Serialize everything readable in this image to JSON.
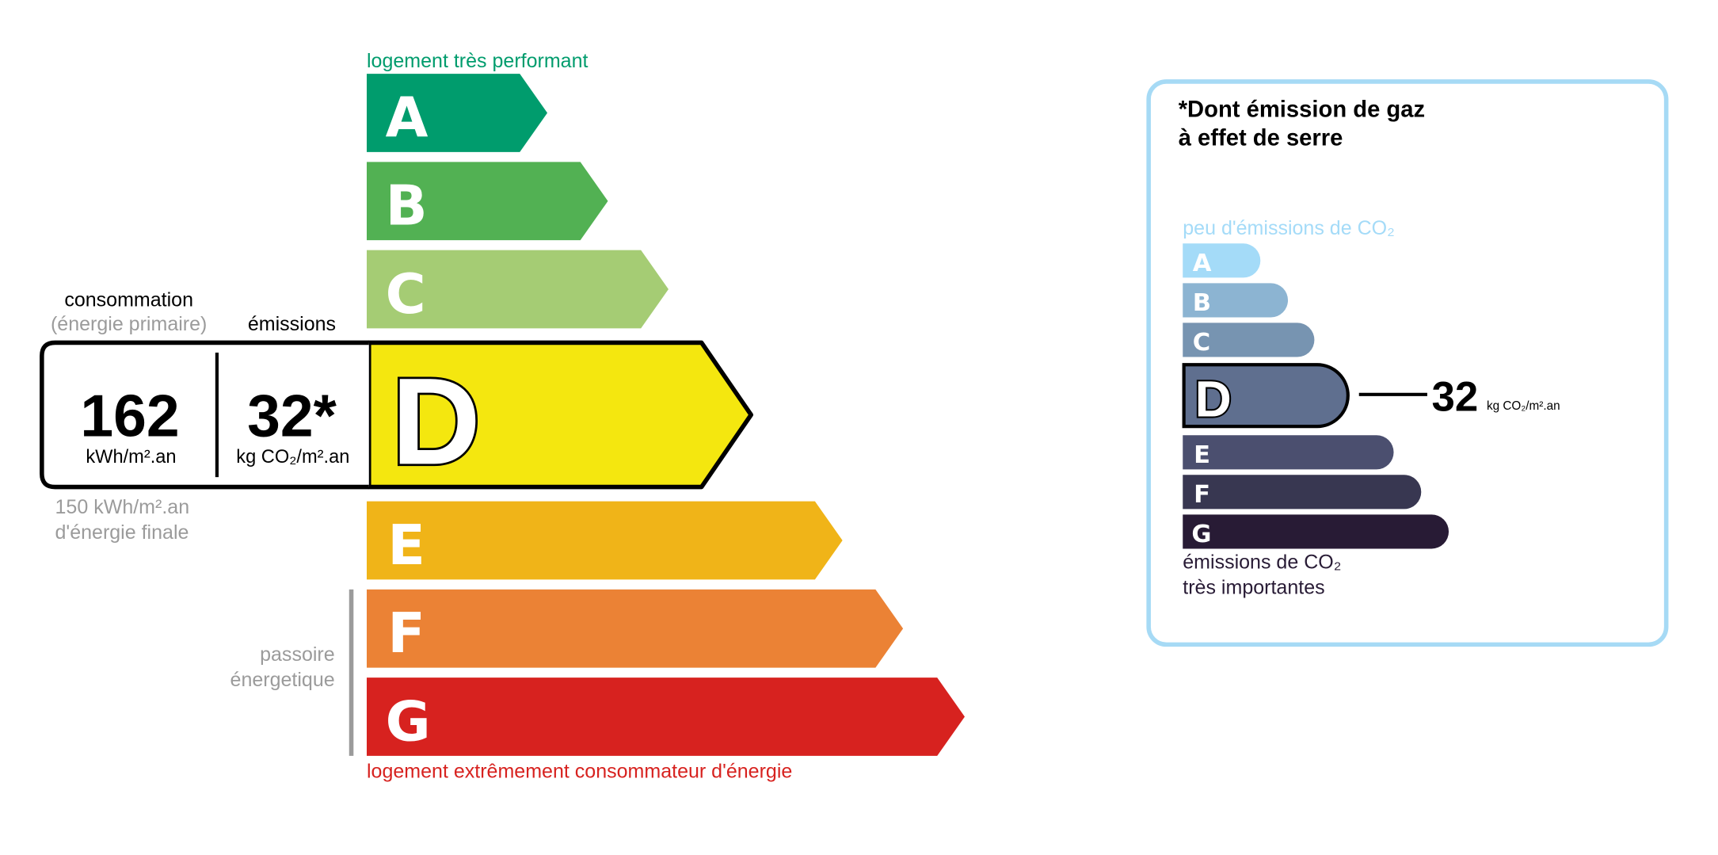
{
  "energy": {
    "top_label": "logement très performant",
    "bottom_label": "logement extrêmement consommateur d'énergie",
    "passoire_line1": "passoire",
    "passoire_line2": "énergetique",
    "classes": [
      {
        "letter": "A",
        "color": "#009c6d"
      },
      {
        "letter": "B",
        "color": "#52b153"
      },
      {
        "letter": "C",
        "color": "#a5cc74"
      },
      {
        "letter": "D",
        "color": "#f4e70f"
      },
      {
        "letter": "E",
        "color": "#f0b418"
      },
      {
        "letter": "F",
        "color": "#eb8235"
      },
      {
        "letter": "G",
        "color": "#d7221f"
      }
    ],
    "current_class": "D",
    "consumption_label": "consommation",
    "consumption_sublabel": "(énergie primaire)",
    "emissions_label": "émissions",
    "consumption_value": "162",
    "consumption_unit": "kWh/m².an",
    "emissions_value": "32*",
    "emissions_unit": "kg CO₂/m².an",
    "final_energy_line1": "150 kWh/m².an",
    "final_energy_line2": "d'énergie finale",
    "top_color": "#009c6d",
    "bottom_color": "#d7221f"
  },
  "ges": {
    "title_line1": "*Dont émission de gaz",
    "title_line2": "à effet de serre",
    "top_label": "peu d'émissions de CO₂",
    "bottom_line1": "émissions de CO₂",
    "bottom_line2": "très importantes",
    "classes": [
      {
        "letter": "A",
        "color": "#a4dbf8"
      },
      {
        "letter": "B",
        "color": "#8cb4d2"
      },
      {
        "letter": "C",
        "color": "#7794b1"
      },
      {
        "letter": "D",
        "color": "#5f6f8f"
      },
      {
        "letter": "E",
        "color": "#4b4f6f"
      },
      {
        "letter": "F",
        "color": "#383751"
      },
      {
        "letter": "G",
        "color": "#281b35"
      }
    ],
    "current_class": "D",
    "value": "32",
    "unit": "kg CO₂/m².an",
    "border_color": "#a6daf5"
  }
}
